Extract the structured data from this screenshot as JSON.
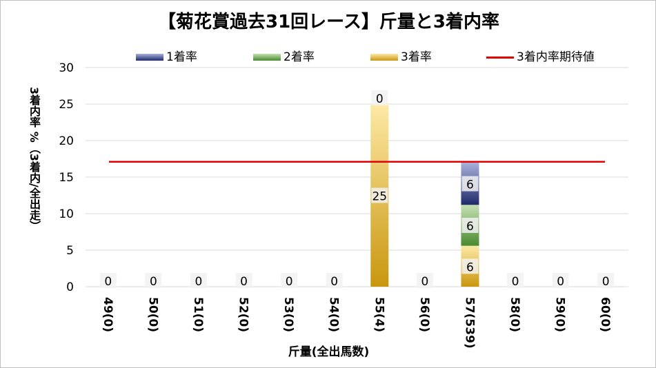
{
  "chart_data": {
    "type": "bar",
    "title": "【菊花賞過去31回レース】斤量と3着内率",
    "xlabel": "斤量(全出馬数)",
    "ylabel": "3着内率 %（3着内/全出走）",
    "ylim": [
      0,
      30
    ],
    "yticks": [
      "0",
      "5",
      "10",
      "15",
      "20",
      "25",
      "30"
    ],
    "grid": true,
    "legend_position": "top",
    "categories": [
      "49(0)",
      "50(0)",
      "51(0)",
      "52(0)",
      "53(0)",
      "54(0)",
      "55(4)",
      "56(0)",
      "57(539)",
      "58(0)",
      "59(0)",
      "60(0)"
    ],
    "series": [
      {
        "name": "3着率",
        "values": [
          0,
          0,
          0,
          0,
          0,
          0,
          25,
          0,
          5.6,
          0,
          0,
          0
        ],
        "color_dark": "#c9960e",
        "color_light": "#fde9a6"
      },
      {
        "name": "2着率",
        "values": [
          0,
          0,
          0,
          0,
          0,
          0,
          0,
          0,
          5.6,
          0,
          0,
          0
        ],
        "color_dark": "#4a8a2e",
        "color_light": "#c5e0b4"
      },
      {
        "name": "1着率",
        "values": [
          0,
          0,
          0,
          0,
          0,
          0,
          0,
          0,
          5.8,
          0,
          0,
          0
        ],
        "color_dark": "#1f2a6b",
        "color_light": "#a9b1dc"
      }
    ],
    "reference_line": {
      "name": "3着内率期待値",
      "value": 17.1,
      "color": "#e00000"
    },
    "data_labels": [
      {
        "category": "49(0)",
        "series": "3着率",
        "text": "0"
      },
      {
        "category": "50(0)",
        "series": "3着率",
        "text": "0"
      },
      {
        "category": "51(0)",
        "series": "3着率",
        "text": "0"
      },
      {
        "category": "52(0)",
        "series": "3着率",
        "text": "0"
      },
      {
        "category": "53(0)",
        "series": "3着率",
        "text": "0"
      },
      {
        "category": "54(0)",
        "series": "3着率",
        "text": "0"
      },
      {
        "category": "55(4)",
        "series": "3着率",
        "text": "25"
      },
      {
        "category": "55(4)",
        "series": "2着率",
        "text": "0"
      },
      {
        "category": "56(0)",
        "series": "3着率",
        "text": "0"
      },
      {
        "category": "57(539)",
        "series": "3着率",
        "text": "6"
      },
      {
        "category": "57(539)",
        "series": "2着率",
        "text": "6"
      },
      {
        "category": "57(539)",
        "series": "1着率",
        "text": "6"
      },
      {
        "category": "58(0)",
        "series": "3着率",
        "text": "0"
      },
      {
        "category": "59(0)",
        "series": "3着率",
        "text": "0"
      },
      {
        "category": "60(0)",
        "series": "3着率",
        "text": "0"
      }
    ]
  }
}
